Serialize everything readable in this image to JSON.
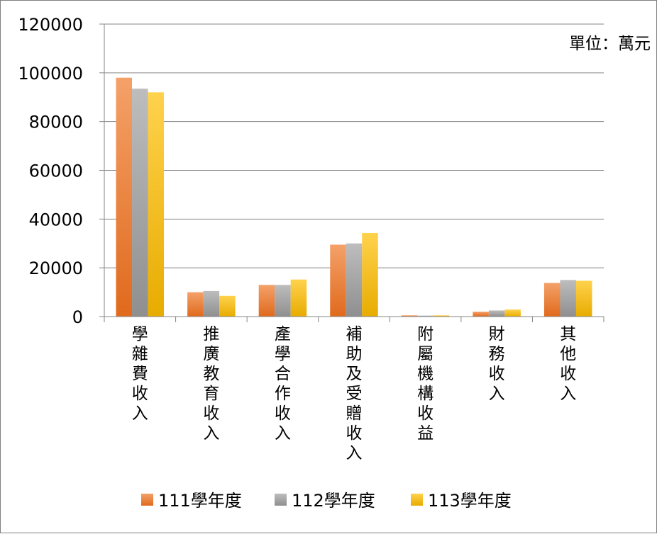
{
  "chart_data": {
    "type": "bar",
    "unit_label": "單位：萬元",
    "categories": [
      "學雜費收入",
      "推廣教育收入",
      "產學合作收入",
      "補助及受贈收入",
      "附屬機構收益",
      "財務收入",
      "其他收入"
    ],
    "series": [
      {
        "name": "111學年度",
        "values": [
          98000,
          10000,
          13000,
          29500,
          500,
          2000,
          13800
        ]
      },
      {
        "name": "112學年度",
        "values": [
          93500,
          10500,
          13000,
          30000,
          400,
          2500,
          15000
        ]
      },
      {
        "name": "113學年度",
        "values": [
          92000,
          8500,
          15200,
          34300,
          500,
          2900,
          14700
        ]
      }
    ],
    "ylim": [
      0,
      120000
    ],
    "yticks": [
      "0",
      "20000",
      "40000",
      "60000",
      "80000",
      "100000",
      "120000"
    ],
    "grid": true,
    "legend_position": "bottom",
    "colors": [
      "#ED7D31",
      "#A5A5A5",
      "#FFC000"
    ]
  }
}
